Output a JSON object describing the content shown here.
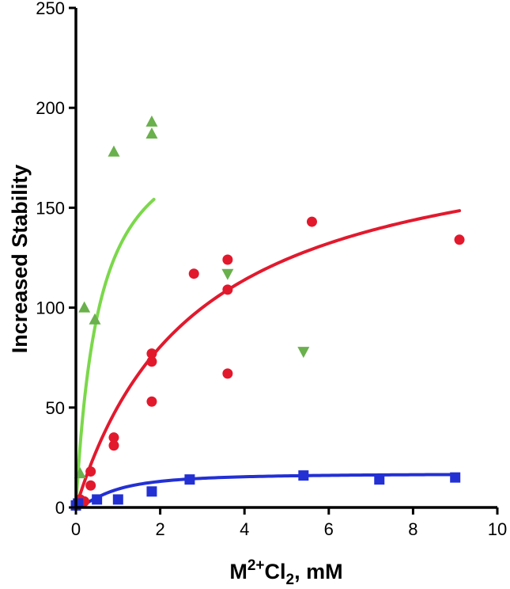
{
  "chart_data": {
    "type": "scatter",
    "title": "",
    "xlabel": {
      "base": "M",
      "sup": "2+",
      "mid": "Cl",
      "sub": "2",
      "tail": ", mM"
    },
    "ylabel": "Increased Stability",
    "xlim": [
      0,
      10
    ],
    "ylim": [
      0,
      250
    ],
    "xticks": [
      0,
      2,
      4,
      6,
      8,
      10
    ],
    "yticks": [
      0,
      50,
      100,
      150,
      200,
      250
    ],
    "grid": false,
    "legend": "none",
    "series": [
      {
        "marker": "triangle-up",
        "color": "#6ab04c",
        "points": [
          [
            0.02,
            2
          ],
          [
            0.1,
            17
          ],
          [
            0.2,
            100
          ],
          [
            0.45,
            94
          ],
          [
            0.9,
            178
          ],
          [
            1.8,
            193
          ],
          [
            1.8,
            187
          ]
        ]
      },
      {
        "marker": "circle",
        "color": "#e2192d",
        "points": [
          [
            0,
            1
          ],
          [
            0.05,
            2
          ],
          [
            0.1,
            4
          ],
          [
            0.2,
            3
          ],
          [
            0.35,
            18
          ],
          [
            0.35,
            11
          ],
          [
            0.9,
            35
          ],
          [
            0.9,
            31
          ],
          [
            1.8,
            77
          ],
          [
            1.8,
            73
          ],
          [
            1.8,
            53
          ],
          [
            2.8,
            117
          ],
          [
            3.6,
            124
          ],
          [
            3.6,
            109
          ],
          [
            3.6,
            67
          ],
          [
            5.6,
            143
          ],
          [
            9.1,
            134
          ]
        ]
      },
      {
        "marker": "triangle-down",
        "color": "#6ab04c",
        "points": [
          [
            3.6,
            117
          ],
          [
            5.4,
            78
          ]
        ]
      },
      {
        "marker": "square",
        "color": "#2330d4",
        "points": [
          [
            0,
            1
          ],
          [
            0.05,
            2
          ],
          [
            0.5,
            4
          ],
          [
            1.0,
            4
          ],
          [
            1.8,
            8
          ],
          [
            2.7,
            14
          ],
          [
            5.4,
            16
          ],
          [
            7.2,
            14
          ],
          [
            9.0,
            15
          ]
        ]
      }
    ],
    "fits": [
      {
        "color": "#7bd84a",
        "bmax": 200,
        "kd": 0.55,
        "xmax": 1.85
      },
      {
        "color": "#e2192d",
        "bmax": 195,
        "kd": 2.85,
        "xmax": 9.1
      },
      {
        "color": "#2330d4",
        "bmax": 17,
        "kd": 0.9,
        "xmax": 9.0,
        "hill": 1.5
      }
    ]
  }
}
